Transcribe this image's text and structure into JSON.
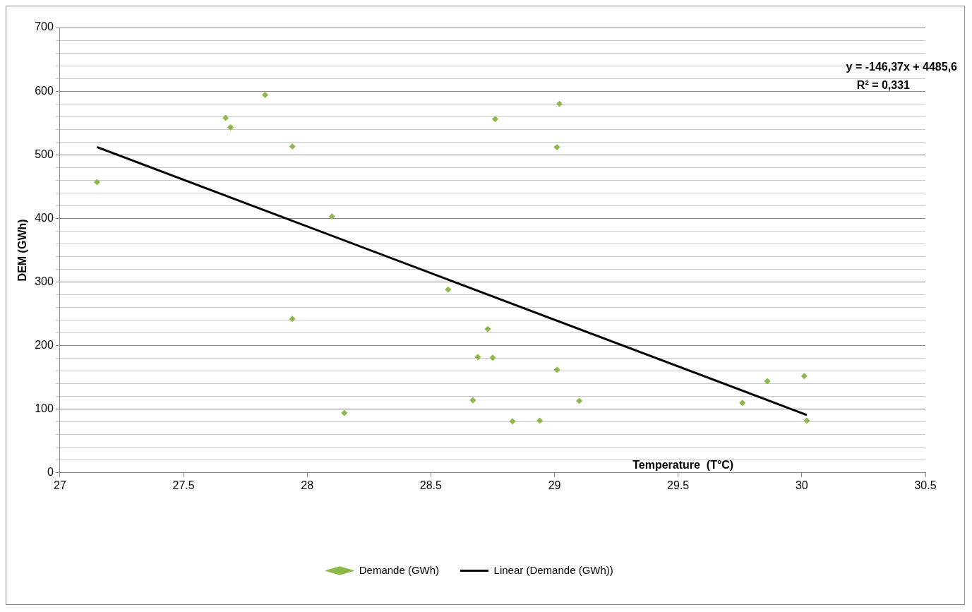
{
  "chart_data": {
    "type": "scatter",
    "xlabel": "Temperature  (T°C)",
    "ylabel": "DEM (GWh)",
    "xlim": [
      27,
      30.5
    ],
    "xticks": [
      27,
      27.5,
      28,
      28.5,
      29,
      29.5,
      30,
      30.5
    ],
    "ylim": [
      0,
      700
    ],
    "yticks": [
      0,
      {
        "value": 20,
        "label": null
      },
      {
        "value": 40,
        "label": null
      },
      {
        "value": 60,
        "label": null
      },
      {
        "value": 80,
        "label": null
      },
      100,
      {
        "value": 120,
        "label": null
      },
      {
        "value": 140,
        "label": null
      },
      {
        "value": 160,
        "label": null
      },
      {
        "value": 180,
        "label": null
      },
      200,
      {
        "value": 220,
        "label": null
      },
      {
        "value": 240,
        "label": null
      },
      {
        "value": 260,
        "label": null
      },
      {
        "value": 280,
        "label": null
      },
      300,
      {
        "value": 320,
        "label": null
      },
      {
        "value": 340,
        "label": null
      },
      {
        "value": 360,
        "label": null
      },
      {
        "value": 380,
        "label": null
      },
      400,
      {
        "value": 420,
        "label": null
      },
      {
        "value": 440,
        "label": null
      },
      {
        "value": 460,
        "label": null
      },
      {
        "value": 480,
        "label": null
      },
      500,
      {
        "value": 520,
        "label": null
      },
      {
        "value": 540,
        "label": null
      },
      {
        "value": 560,
        "label": null
      },
      {
        "value": 580,
        "label": null
      },
      600,
      {
        "value": 620,
        "label": null
      },
      {
        "value": 640,
        "label": null
      },
      {
        "value": 660,
        "label": null
      },
      {
        "value": 680,
        "label": null
      },
      700
    ],
    "grid": "y",
    "legend": "bottom",
    "series": [
      {
        "name": "Demande (GWh)",
        "marker": "diamond",
        "color": "#8db84a",
        "x": [
          27.15,
          27.67,
          27.69,
          27.83,
          27.94,
          27.94,
          28.1,
          28.15,
          28.57,
          28.67,
          28.69,
          28.73,
          28.75,
          28.76,
          28.83,
          28.94,
          29.01,
          29.01,
          29.02,
          29.1,
          29.76,
          29.86,
          30.01,
          30.02
        ],
        "values": [
          457,
          558,
          543,
          594,
          513,
          242,
          403,
          94,
          288,
          114,
          182,
          226,
          181,
          556,
          81,
          82,
          512,
          162,
          580,
          113,
          110,
          144,
          152,
          82
        ]
      },
      {
        "name": "Linear (Demande (GWh))",
        "type": "line",
        "marker": "none",
        "color": "#000000",
        "x": [
          27.15,
          30.02
        ],
        "values": [
          512,
          91
        ]
      }
    ],
    "annotations": [
      "y = -146,37x + 4485,6",
      "R² = 0,331"
    ]
  }
}
